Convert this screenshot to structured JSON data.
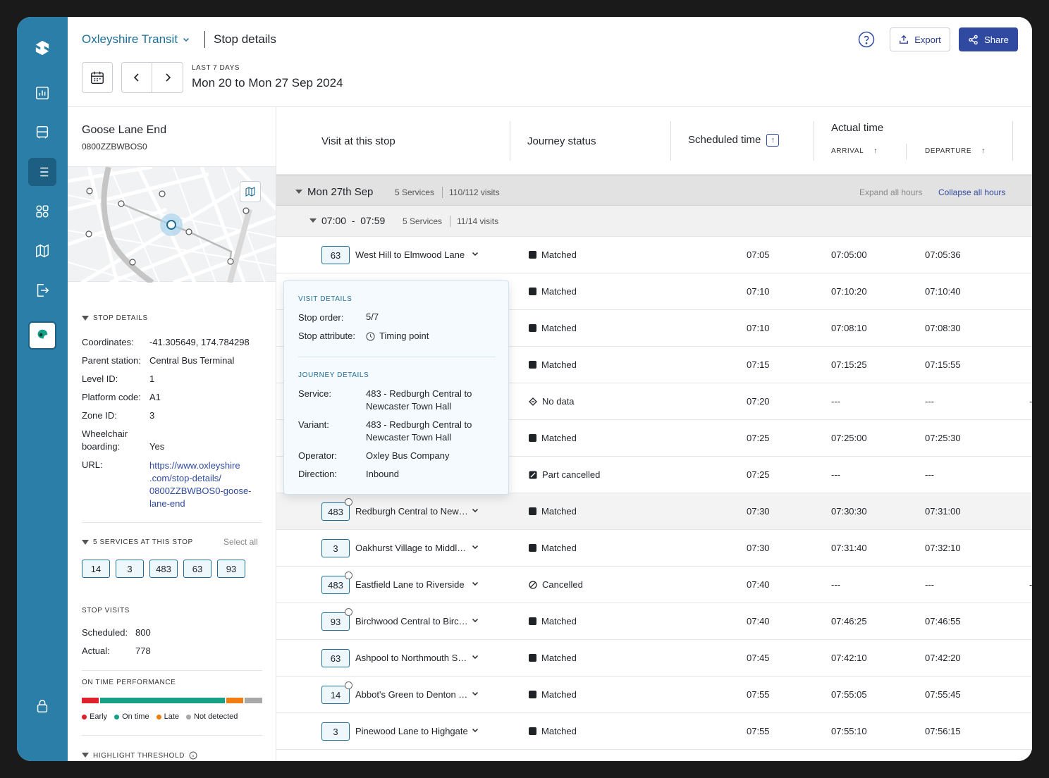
{
  "header": {
    "org": "Oxleyshire Transit",
    "page_title": "Stop details",
    "export_label": "Export",
    "share_label": "Share",
    "range_label": "LAST 7 DAYS",
    "range_value": "Mon 20 to Mon 27 Sep 2024"
  },
  "stop": {
    "name": "Goose Lane End",
    "code": "0800ZZBWBOS0",
    "details_heading": "STOP DETAILS",
    "details": [
      {
        "k": "Coordinates:",
        "v": "-41.305649, 174.784298"
      },
      {
        "k": "Parent station:",
        "v": "Central Bus Terminal"
      },
      {
        "k": "Level ID:",
        "v": "1"
      },
      {
        "k": "Platform code:",
        "v": "A1"
      },
      {
        "k": "Zone ID:",
        "v": "3"
      },
      {
        "k": "Wheelchair",
        "k2": "boarding:",
        "v": "Yes"
      }
    ],
    "url_label": "URL:",
    "url_lines": [
      "https://www.oxleyshire",
      ".com/stop-details/",
      "0800ZZBWBOS0-goose-",
      "lane-end"
    ]
  },
  "services": {
    "heading": "5 SERVICES AT THIS STOP",
    "select_all": "Select all",
    "chips": [
      "14",
      "3",
      "483",
      "63",
      "93"
    ]
  },
  "visits": {
    "heading": "STOP VISITS",
    "scheduled_label": "Scheduled:",
    "scheduled": "800",
    "actual_label": "Actual:",
    "actual": "778"
  },
  "otp": {
    "heading": "ON TIME PERFORMANCE",
    "early": 0.095,
    "on_time": 0.7,
    "late": 0.095,
    "not_detected": 0.1,
    "legend": [
      "Early",
      "On time",
      "Late",
      "Not detected"
    ],
    "colors": {
      "early": "#e0202b",
      "on_time": "#16a085",
      "late": "#ef7d11",
      "not_detected": "#a8a8a8"
    }
  },
  "threshold": {
    "heading": "HIGHLIGHT THRESHOLD"
  },
  "table": {
    "col_visit": "Visit at this stop",
    "col_status": "Journey status",
    "col_sched": "Scheduled time",
    "col_actual": "Actual time",
    "sub_arrival": "ARRIVAL",
    "sub_departure": "DEPARTURE",
    "day": {
      "label": "Mon 27th Sep",
      "services": "5 Services",
      "visits": "110/112 visits",
      "expand": "Expand all hours",
      "collapse": "Collapse all hours"
    },
    "hour": {
      "label": "07:00  -  07:59",
      "services": "5 Services",
      "visits": "11/14 visits"
    },
    "rows": [
      {
        "svc": "63",
        "route": "West Hill to Elmwood Lane",
        "status": "Matched",
        "icon": "square",
        "sched": "07:05",
        "arr": "07:05:00",
        "dep": "07:05:36",
        "clock": false
      },
      {
        "svc": "",
        "route": "",
        "status": "Matched",
        "icon": "square",
        "sched": "07:10",
        "arr": "07:10:20",
        "dep": "07:10:40",
        "clock": true
      },
      {
        "svc": "",
        "route": "",
        "status": "Matched",
        "icon": "square",
        "sched": "07:10",
        "arr": "07:08:10",
        "dep": "07:08:30",
        "clock": false
      },
      {
        "svc": "",
        "route": "",
        "status": "Matched",
        "icon": "square",
        "sched": "07:15",
        "arr": "07:15:25",
        "dep": "07:15:55",
        "clock": false
      },
      {
        "svc": "",
        "route": "",
        "status": "No data",
        "icon": "diamond",
        "sched": "07:20",
        "arr": "---",
        "dep": "---",
        "clock": false,
        "edge": "-"
      },
      {
        "svc": "",
        "route": "",
        "status": "Matched",
        "icon": "square",
        "sched": "07:25",
        "arr": "07:25:00",
        "dep": "07:25:30",
        "clock": false
      },
      {
        "svc": "",
        "route": "",
        "status": "Part cancelled",
        "icon": "half",
        "sched": "07:25",
        "arr": "---",
        "dep": "---",
        "clock": false
      },
      {
        "svc": "483",
        "route": "Redburgh Central to Newcaster Town Hall",
        "status": "Matched",
        "icon": "square",
        "sched": "07:30",
        "arr": "07:30:30",
        "dep": "07:31:00",
        "clock": true,
        "hl": true
      },
      {
        "svc": "3",
        "route": "Oakhurst Village to Middleton",
        "status": "Matched",
        "icon": "square",
        "sched": "07:30",
        "arr": "07:31:40",
        "dep": "07:32:10",
        "clock": false
      },
      {
        "svc": "483",
        "route": "Eastfield Lane to Riverside",
        "status": "Cancelled",
        "icon": "cancel",
        "sched": "07:40",
        "arr": "---",
        "dep": "---",
        "clock": true,
        "edge": "-"
      },
      {
        "svc": "93",
        "route": "Birchwood Central to Birchfield",
        "status": "Matched",
        "icon": "square",
        "sched": "07:40",
        "arr": "07:46:25",
        "dep": "07:46:55",
        "clock": true
      },
      {
        "svc": "63",
        "route": "Ashpool to Northmouth Station",
        "status": "Matched",
        "icon": "square",
        "sched": "07:45",
        "arr": "07:42:10",
        "dep": "07:42:20",
        "clock": false
      },
      {
        "svc": "14",
        "route": "Abbot's Green to Denton Park",
        "status": "Matched",
        "icon": "square",
        "sched": "07:55",
        "arr": "07:55:05",
        "dep": "07:55:45",
        "clock": true
      },
      {
        "svc": "3",
        "route": "Pinewood Lane to Highgate",
        "status": "Matched",
        "icon": "square",
        "sched": "07:55",
        "arr": "07:55:10",
        "dep": "07:56:15",
        "clock": false
      }
    ]
  },
  "tooltip": {
    "visit_heading": "VISIT DETAILS",
    "stop_order_label": "Stop order:",
    "stop_order": "5/7",
    "attr_label": "Stop attribute:",
    "attr": "Timing point",
    "journey_heading": "JOURNEY DETAILS",
    "service_label": "Service:",
    "service": "483 - Redburgh Central to Newcaster Town Hall",
    "variant_label": "Variant:",
    "variant": "483 - Redburgh Central to Newcaster Town Hall",
    "operator_label": "Operator:",
    "operator": "Oxley Bus Company",
    "direction_label": "Direction:",
    "direction": "Inbound"
  }
}
